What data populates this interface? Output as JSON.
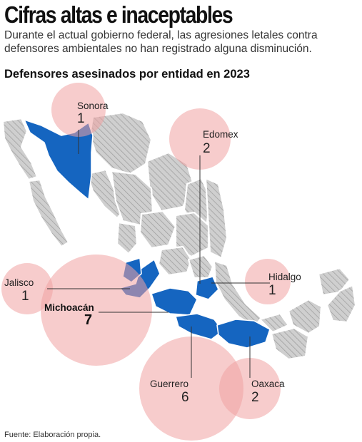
{
  "header": {
    "title": "Cifras altas e inaceptables",
    "subtitle": "Durante el actual gobierno federal, las agresiones letales contra defensores ambientales no han registrado alguna disminución."
  },
  "map": {
    "heading": "Defensores asesinados por entidad en 2023",
    "highlight_color": "#1565c0",
    "other_color": "#c9c9c9",
    "bubble_color": "#f1a3a3",
    "states": [
      {
        "name": "Sonora",
        "count": "1"
      },
      {
        "name": "Edomex",
        "count": "2"
      },
      {
        "name": "Jalisco",
        "count": "1"
      },
      {
        "name": "Hidalgo",
        "count": "1"
      },
      {
        "name": "Michoacán",
        "count": "7"
      },
      {
        "name": "Guerrero",
        "count": "6"
      },
      {
        "name": "Oaxaca",
        "count": "2"
      }
    ]
  },
  "footer": {
    "source": "Fuente: Elaboración propia."
  }
}
